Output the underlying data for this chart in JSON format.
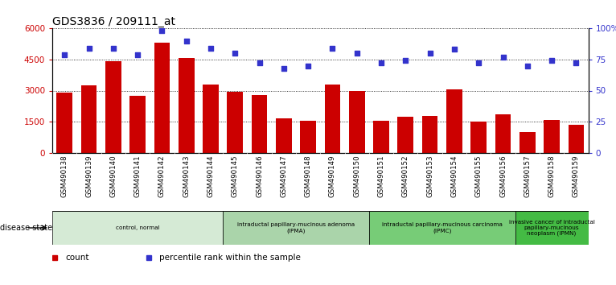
{
  "title": "GDS3836 / 209111_at",
  "samples": [
    "GSM490138",
    "GSM490139",
    "GSM490140",
    "GSM490141",
    "GSM490142",
    "GSM490143",
    "GSM490144",
    "GSM490145",
    "GSM490146",
    "GSM490147",
    "GSM490148",
    "GSM490149",
    "GSM490150",
    "GSM490151",
    "GSM490152",
    "GSM490153",
    "GSM490154",
    "GSM490155",
    "GSM490156",
    "GSM490157",
    "GSM490158",
    "GSM490159"
  ],
  "counts": [
    2900,
    3250,
    4400,
    2750,
    5300,
    4550,
    3300,
    2950,
    2800,
    1650,
    1550,
    3300,
    3000,
    1550,
    1750,
    1800,
    3050,
    1500,
    1850,
    1000,
    1600,
    1350
  ],
  "percentiles": [
    79,
    84,
    84,
    79,
    98,
    90,
    84,
    80,
    72,
    68,
    70,
    84,
    80,
    72,
    74,
    80,
    83,
    72,
    77,
    70,
    74,
    72
  ],
  "bar_color": "#cc0000",
  "dot_color": "#3333cc",
  "ylim_left": [
    0,
    6000
  ],
  "ylim_right": [
    0,
    100
  ],
  "yticks_left": [
    0,
    1500,
    3000,
    4500,
    6000
  ],
  "ytick_labels_left": [
    "0",
    "1500",
    "3000",
    "4500",
    "6000"
  ],
  "yticks_right": [
    0,
    25,
    50,
    75,
    100
  ],
  "ytick_labels_right": [
    "0",
    "25",
    "50",
    "75",
    "100%"
  ],
  "disease_groups": [
    {
      "label": "control, normal",
      "start": 0,
      "end": 7,
      "color": "#d5ead5"
    },
    {
      "label": "intraductal papillary-mucinous adenoma\n(IPMA)",
      "start": 7,
      "end": 13,
      "color": "#aad4aa"
    },
    {
      "label": "intraductal papillary-mucinous carcinoma\n(IPMC)",
      "start": 13,
      "end": 19,
      "color": "#77cc77"
    },
    {
      "label": "invasive cancer of intraductal\npapillary-mucinous\nneoplasm (IPMN)",
      "start": 19,
      "end": 22,
      "color": "#44bb44"
    }
  ],
  "legend_items": [
    {
      "label": "count",
      "color": "#cc0000"
    },
    {
      "label": "percentile rank within the sample",
      "color": "#3333cc"
    }
  ],
  "disease_state_label": "disease state",
  "bg_color": "#ffffff",
  "tick_area_color": "#cccccc",
  "title_fontsize": 10
}
